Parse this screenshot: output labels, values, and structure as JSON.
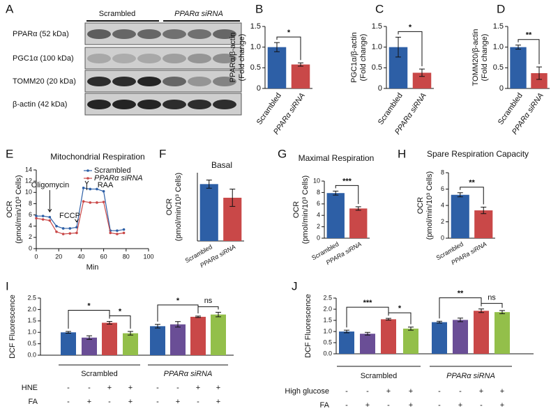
{
  "blot": {
    "panel": "A",
    "groups": [
      "Scrambled",
      "PPARα siRNA"
    ],
    "rows": [
      "PPARα (52 kDa)",
      "PGC1α (100 kDa)",
      "TOMM20 (20 kDa)",
      "β-actin (42 kDa)"
    ]
  },
  "chart_data": [
    {
      "type": "bar",
      "panel": "B",
      "ylabel": [
        "PPARα/β-actin",
        "(Fold change)"
      ],
      "categories": [
        "Scrambled",
        "PPARα siRNA"
      ],
      "values": [
        1.0,
        0.58
      ],
      "errors": [
        0.11,
        0.04
      ],
      "colors": [
        "#2d5fa6",
        "#c94848"
      ],
      "ylim": [
        0,
        1.5
      ],
      "yticks": [
        0,
        0.5,
        {
          "value": 1,
          "label": "1.0"
        },
        1.5
      ],
      "brackets": [
        {
          "label": "*",
          "bars": [
            0,
            1
          ]
        }
      ]
    },
    {
      "type": "bar",
      "panel": "C",
      "ylabel": [
        "PGC1α/β-actin",
        "(Fold change)"
      ],
      "categories": [
        "Scrambled",
        "PPARα siRNA"
      ],
      "values": [
        1.0,
        0.38
      ],
      "errors": [
        0.24,
        0.09
      ],
      "colors": [
        "#2d5fa6",
        "#c94848"
      ],
      "ylim": [
        0,
        1.5
      ],
      "yticks": [
        0,
        0.5,
        {
          "value": 1,
          "label": "1.0"
        },
        1.5
      ],
      "brackets": [
        {
          "label": "*",
          "bars": [
            0,
            1
          ]
        }
      ]
    },
    {
      "type": "bar",
      "panel": "D",
      "ylabel": [
        "TOMM20/β-actin",
        "(Fold change)"
      ],
      "categories": [
        "Scrambled",
        "PPARα siRNA"
      ],
      "values": [
        1.0,
        0.37
      ],
      "errors": [
        0.05,
        0.15
      ],
      "colors": [
        "#2d5fa6",
        "#c94848"
      ],
      "ylim": [
        0,
        1.5
      ],
      "yticks": [
        0,
        0.5,
        {
          "value": 1,
          "label": "1.0"
        },
        1.5
      ],
      "brackets": [
        {
          "label": "**",
          "bars": [
            0,
            1
          ]
        }
      ]
    },
    {
      "type": "line",
      "panel": "E",
      "title": "Mitochondrial Respiration",
      "xlabel": "Min",
      "ylabel": [
        "OCR",
        "(pmol/min/10³ Cells)"
      ],
      "x": [
        0,
        6,
        12,
        18,
        24,
        30,
        36,
        42,
        48,
        54,
        60,
        66,
        72,
        78
      ],
      "series": [
        {
          "name": "Scrambled",
          "color": "#2d5fa6",
          "values": [
            5.8,
            5.8,
            5.6,
            4.0,
            3.6,
            3.6,
            3.8,
            10.8,
            10.6,
            10.6,
            10.2,
            3.2,
            3.2,
            3.4
          ]
        },
        {
          "name": "PPARα siRNA",
          "color": "#c94848",
          "values": [
            5.4,
            5.2,
            5.0,
            3.0,
            2.6,
            2.7,
            2.8,
            8.4,
            8.2,
            8.2,
            8.3,
            2.8,
            2.6,
            2.8
          ]
        }
      ],
      "annotations": [
        "Oligomycin",
        "FCCP",
        "RAA"
      ],
      "xlim": [
        0,
        100
      ],
      "xticks": [
        0,
        20,
        40,
        60,
        80,
        100
      ],
      "ylim": [
        0,
        14
      ],
      "yticks": [
        0,
        2,
        4,
        6,
        8,
        10,
        12,
        14
      ]
    },
    {
      "type": "bar",
      "panel": "F",
      "title": "Basal",
      "ylabel": [
        "OCR",
        "(pmol/min/10³ Cells)"
      ],
      "categories": [
        "Scrambled",
        "PPARα siRNA"
      ],
      "values": [
        2.5,
        1.9
      ],
      "errors": [
        0.18,
        0.38
      ],
      "colors": [
        "#2d5fa6",
        "#c94848"
      ],
      "ylim": [
        0,
        3
      ]
    },
    {
      "type": "bar",
      "panel": "G",
      "title": "Maximal Respiration",
      "ylabel": [
        "OCR",
        "(pmol/min/10³ Cells)"
      ],
      "categories": [
        "Scrambled",
        "PPARa siRNA"
      ],
      "values": [
        7.9,
        5.2
      ],
      "errors": [
        0.35,
        0.3
      ],
      "colors": [
        "#2d5fa6",
        "#c94848"
      ],
      "ylim": [
        0,
        10
      ],
      "yticks": [
        0,
        2,
        4,
        6,
        8,
        10
      ],
      "brackets": [
        {
          "label": "***",
          "bars": [
            0,
            1
          ]
        }
      ]
    },
    {
      "type": "bar",
      "panel": "H",
      "title": "Spare Respiration Capacity",
      "ylabel": [
        "OCR",
        "(pmol/min/10³ Cells)"
      ],
      "categories": [
        "Scrambled",
        "PPARa siRNA"
      ],
      "values": [
        5.3,
        3.4
      ],
      "errors": [
        0.25,
        0.4
      ],
      "colors": [
        "#2d5fa6",
        "#c94848"
      ],
      "ylim": [
        0,
        8
      ],
      "yticks": [
        0,
        2,
        4,
        6,
        8
      ],
      "brackets": [
        {
          "label": "**",
          "bars": [
            0,
            1
          ]
        }
      ]
    },
    {
      "type": "groupbar",
      "panel": "I",
      "ylabel": [
        "DCF Fluorescence"
      ],
      "values": [
        1.0,
        0.77,
        1.42,
        0.96,
        1.27,
        1.35,
        1.68,
        1.78
      ],
      "errors": [
        0.04,
        0.08,
        0.06,
        0.08,
        0.08,
        0.12,
        0.03,
        0.1
      ],
      "colors": [
        "#2d5fa6",
        "#6a4e96",
        "#c94848",
        "#93bf4a",
        "#2d5fa6",
        "#6a4e96",
        "#c94848",
        "#93bf4a"
      ],
      "groups": [
        "Scrambled",
        "PPARα siRNA"
      ],
      "conditions": [
        {
          "name": "HNE",
          "values": [
            "-",
            "-",
            "+",
            "+",
            "-",
            "-",
            "+",
            "+"
          ]
        },
        {
          "name": "FA",
          "values": [
            "-",
            "+",
            "-",
            "+",
            "-",
            "+",
            "-",
            "+"
          ]
        }
      ],
      "ylim": [
        0,
        2.5
      ],
      "yticks": [
        {
          "value": 0,
          "label": "0.0"
        },
        0.5,
        {
          "value": 1,
          "label": "1.0"
        },
        1.5,
        {
          "value": 2,
          "label": "2.0"
        },
        2.5
      ],
      "brackets": [
        {
          "label": "*",
          "bars": [
            0,
            2
          ]
        },
        {
          "label": "*",
          "bars": [
            2,
            3
          ]
        },
        {
          "label": "*",
          "bars": [
            4,
            6
          ]
        },
        {
          "label": "ns",
          "bars": [
            6,
            7
          ]
        }
      ]
    },
    {
      "type": "groupbar",
      "panel": "J",
      "ylabel": [
        "DCF Fluorescence"
      ],
      "values": [
        1.0,
        0.9,
        1.55,
        1.13,
        1.42,
        1.52,
        1.93,
        1.87
      ],
      "errors": [
        0.06,
        0.06,
        0.04,
        0.07,
        0.04,
        0.08,
        0.08,
        0.07
      ],
      "colors": [
        "#2d5fa6",
        "#6a4e96",
        "#c94848",
        "#93bf4a",
        "#2d5fa6",
        "#6a4e96",
        "#c94848",
        "#93bf4a"
      ],
      "groups": [
        "Scrambled",
        "PPARα siRNA"
      ],
      "conditions": [
        {
          "name": "High glucose",
          "values": [
            "-",
            "-",
            "+",
            "+",
            "-",
            "-",
            "+",
            "+"
          ]
        },
        {
          "name": "FA",
          "values": [
            "-",
            "+",
            "-",
            "+",
            "-",
            "+",
            "-",
            "+"
          ]
        }
      ],
      "ylim": [
        0,
        2.5
      ],
      "yticks": [
        {
          "value": 0,
          "label": "0.0"
        },
        0.5,
        {
          "value": 1,
          "label": "1.0"
        },
        1.5,
        {
          "value": 2,
          "label": "2.0"
        },
        2.5
      ],
      "brackets": [
        {
          "label": "***",
          "bars": [
            0,
            2
          ]
        },
        {
          "label": "*",
          "bars": [
            2,
            3
          ]
        },
        {
          "label": "**",
          "bars": [
            4,
            6
          ]
        },
        {
          "label": "ns",
          "bars": [
            6,
            7
          ]
        }
      ]
    }
  ]
}
